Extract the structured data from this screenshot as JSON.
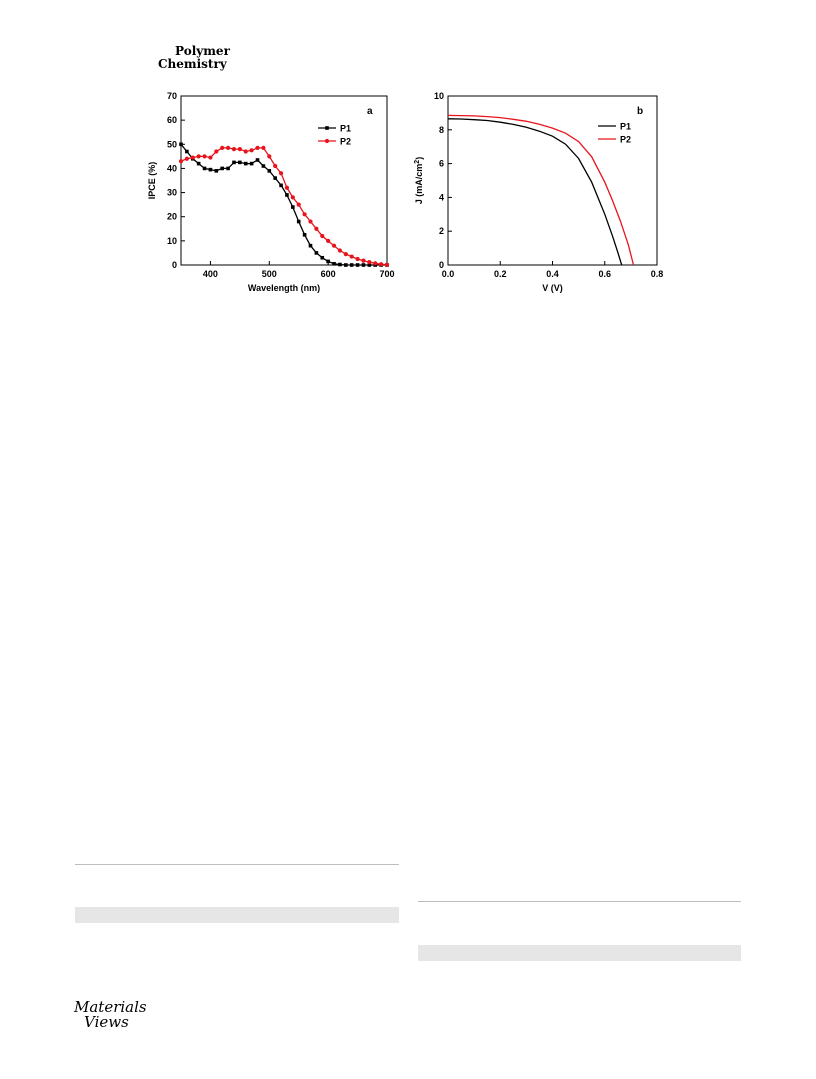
{
  "journal": {
    "line1": "Polymer",
    "line2": "Chemistry"
  },
  "publisher": {
    "line1": "Materials",
    "line2": "Views"
  },
  "chart_data": [
    {
      "type": "line",
      "panel_label": "a",
      "xlabel": "Wavelength (nm)",
      "ylabel": "IPCE (%)",
      "xlim": [
        350,
        700
      ],
      "ylim": [
        0,
        70
      ],
      "xticks": [
        400,
        500,
        600,
        700
      ],
      "yticks": [
        0,
        10,
        20,
        30,
        40,
        50,
        60,
        70
      ],
      "grid": false,
      "legend": "top-right",
      "series": [
        {
          "name": "P1",
          "color": "#000000",
          "marker": "square",
          "x": [
            350,
            360,
            370,
            380,
            390,
            400,
            410,
            420,
            430,
            440,
            450,
            460,
            470,
            480,
            490,
            500,
            510,
            520,
            530,
            540,
            550,
            560,
            570,
            580,
            590,
            600,
            610,
            620,
            630,
            640,
            650,
            660,
            670,
            680,
            690,
            700
          ],
          "y": [
            50,
            47,
            44,
            42,
            40,
            39.5,
            39,
            40,
            40,
            42.5,
            42.5,
            42,
            42,
            43.5,
            41,
            39,
            36,
            33,
            29,
            24,
            18,
            12.5,
            8,
            5,
            3,
            1.5,
            0.5,
            0.2,
            0,
            0,
            0,
            0,
            0,
            0,
            0,
            0
          ]
        },
        {
          "name": "P2",
          "color": "#e8141c",
          "marker": "circle",
          "x": [
            350,
            360,
            370,
            380,
            390,
            400,
            410,
            420,
            430,
            440,
            450,
            460,
            470,
            480,
            490,
            500,
            510,
            520,
            530,
            540,
            550,
            560,
            570,
            580,
            590,
            600,
            610,
            620,
            630,
            640,
            650,
            660,
            670,
            680,
            690,
            700
          ],
          "y": [
            43,
            44,
            44.5,
            45,
            45,
            44.5,
            47,
            48.5,
            48.5,
            48,
            48,
            47,
            47.5,
            48.5,
            48.5,
            45,
            41,
            38,
            32,
            28,
            25,
            21,
            18,
            15,
            12,
            10,
            8,
            6,
            4.5,
            3.5,
            2.5,
            1.8,
            1.2,
            0.7,
            0.3,
            0.1
          ]
        }
      ]
    },
    {
      "type": "line",
      "panel_label": "b",
      "xlabel": "V (V)",
      "ylabel": "J (mA/cm",
      "ylabel_sup": "2",
      "ylabel_end": ")",
      "xlim": [
        0.0,
        0.8
      ],
      "ylim": [
        0,
        10
      ],
      "xticks": [
        0.0,
        0.2,
        0.4,
        0.6,
        0.8
      ],
      "yticks": [
        0,
        2,
        4,
        6,
        8,
        10
      ],
      "grid": false,
      "legend": "top-right",
      "series": [
        {
          "name": "P1",
          "color": "#000000",
          "x": [
            0.0,
            0.05,
            0.1,
            0.15,
            0.2,
            0.25,
            0.3,
            0.35,
            0.4,
            0.45,
            0.5,
            0.55,
            0.6,
            0.63,
            0.65,
            0.665
          ],
          "y": [
            8.65,
            8.64,
            8.6,
            8.55,
            8.45,
            8.32,
            8.15,
            7.92,
            7.62,
            7.15,
            6.3,
            4.9,
            3.0,
            1.7,
            0.75,
            0.0
          ]
        },
        {
          "name": "P2",
          "color": "#e8141c",
          "x": [
            0.0,
            0.05,
            0.1,
            0.15,
            0.2,
            0.25,
            0.3,
            0.35,
            0.4,
            0.45,
            0.5,
            0.55,
            0.6,
            0.63,
            0.66,
            0.69,
            0.71
          ],
          "y": [
            8.85,
            8.84,
            8.82,
            8.78,
            8.72,
            8.62,
            8.5,
            8.33,
            8.1,
            7.8,
            7.3,
            6.4,
            4.9,
            3.8,
            2.6,
            1.2,
            0.0
          ]
        }
      ]
    }
  ]
}
